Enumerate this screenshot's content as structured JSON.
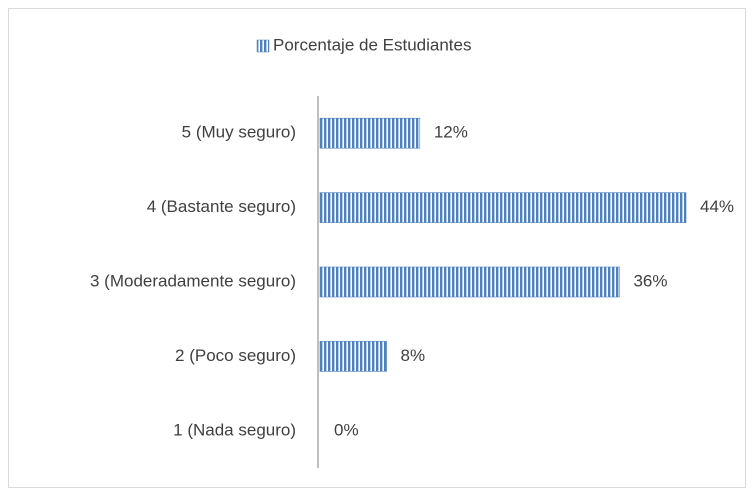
{
  "chart_data": {
    "type": "bar",
    "orientation": "horizontal",
    "legend": "top",
    "categories": [
      "5 (Muy seguro)",
      "4 (Bastante seguro)",
      "3 (Moderadamente seguro)",
      "2 (Poco seguro)",
      "1 (Nada seguro)"
    ],
    "series": [
      {
        "name": "Porcentaje de Estudiantes",
        "color": "#4f81bd",
        "values": [
          12,
          44,
          36,
          8,
          0
        ],
        "value_labels": [
          "12%",
          "44%",
          "36%",
          "8%",
          "0%"
        ]
      }
    ]
  }
}
